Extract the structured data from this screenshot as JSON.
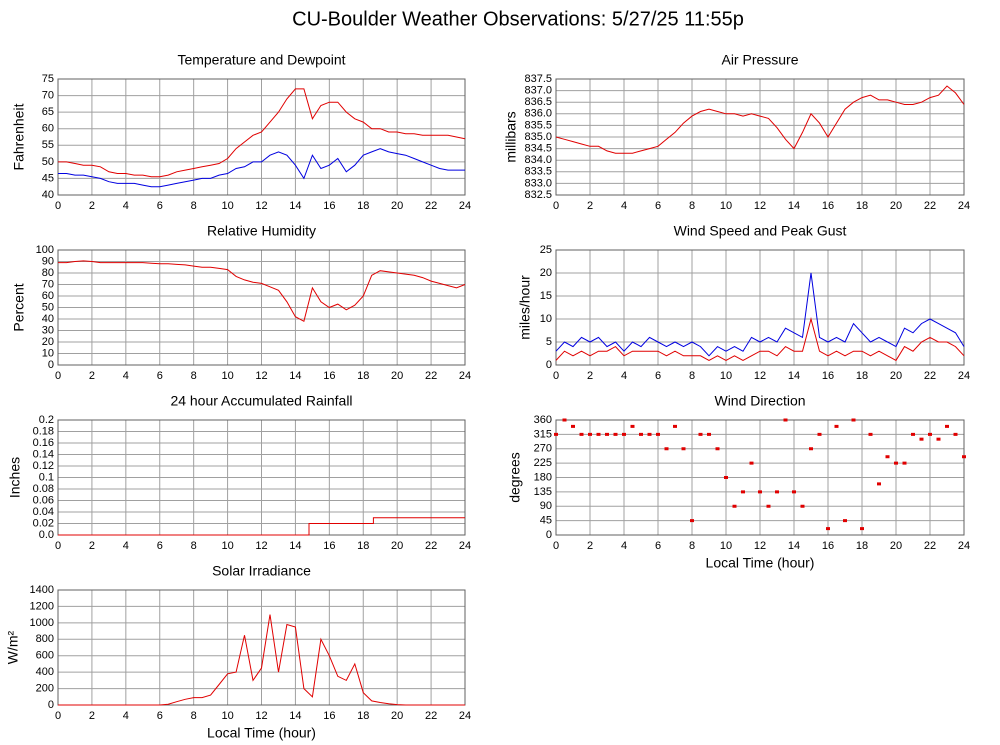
{
  "title": "CU-Boulder Weather Observations: 5/27/25 11:55p",
  "chart_data": [
    {
      "type": "line",
      "title": "Temperature and Dewpoint",
      "ylabel": "Fahrenheit",
      "x": [
        0,
        0.5,
        1,
        1.5,
        2,
        2.5,
        3,
        3.5,
        4,
        4.5,
        5,
        5.5,
        6,
        6.5,
        7,
        7.5,
        8,
        8.5,
        9,
        9.5,
        10,
        10.5,
        11,
        11.5,
        12,
        12.5,
        13,
        13.5,
        14,
        14.5,
        15,
        15.5,
        16,
        16.5,
        17,
        17.5,
        18,
        18.5,
        19,
        19.5,
        20,
        20.5,
        21,
        21.5,
        22,
        22.5,
        23,
        23.5,
        24
      ],
      "series": [
        {
          "color": "#e00000",
          "values": [
            50,
            50,
            49.5,
            49,
            49,
            48.5,
            47,
            46.5,
            46.5,
            46,
            46,
            45.5,
            45.5,
            46,
            47,
            47.5,
            48,
            48.5,
            49,
            49.5,
            51,
            54,
            56,
            58,
            59,
            62,
            65,
            69,
            72,
            72,
            63,
            67,
            68,
            68,
            65,
            63,
            62,
            60,
            60,
            59,
            59,
            58.5,
            58.5,
            58,
            58,
            58,
            58,
            57.5,
            57
          ]
        },
        {
          "color": "#0000e0",
          "values": [
            46.5,
            46.5,
            46,
            46,
            45.5,
            45,
            44,
            43.5,
            43.5,
            43.5,
            43,
            42.5,
            42.5,
            43,
            43.5,
            44,
            44.5,
            45,
            45,
            46,
            46.5,
            48,
            48.5,
            50,
            50,
            52,
            53,
            52,
            49,
            45,
            52,
            48,
            49,
            51,
            47,
            49,
            52,
            53,
            54,
            53,
            52.5,
            52,
            51,
            50,
            49,
            48,
            47.5,
            47.5,
            47.5
          ]
        }
      ],
      "xlim": [
        0,
        24
      ],
      "xticks": [
        0,
        2,
        4,
        6,
        8,
        10,
        12,
        14,
        16,
        18,
        20,
        22,
        24
      ],
      "ylim": [
        40,
        75
      ],
      "yticks": [
        40,
        45,
        50,
        55,
        60,
        65,
        70,
        75
      ],
      "grid": true
    },
    {
      "type": "line",
      "title": "Air Pressure",
      "ylabel": "millibars",
      "x": [
        0,
        0.5,
        1,
        1.5,
        2,
        2.5,
        3,
        3.5,
        4,
        4.5,
        5,
        5.5,
        6,
        6.5,
        7,
        7.5,
        8,
        8.5,
        9,
        9.5,
        10,
        10.5,
        11,
        11.5,
        12,
        12.5,
        13,
        13.5,
        14,
        14.5,
        15,
        15.5,
        16,
        16.5,
        17,
        17.5,
        18,
        18.5,
        19,
        19.5,
        20,
        20.5,
        21,
        21.5,
        22,
        22.5,
        23,
        23.5,
        24
      ],
      "series": [
        {
          "color": "#e00000",
          "values": [
            835.0,
            834.9,
            834.8,
            834.7,
            834.6,
            834.6,
            834.4,
            834.3,
            834.3,
            834.3,
            834.4,
            834.5,
            834.6,
            834.9,
            835.2,
            835.6,
            835.9,
            836.1,
            836.2,
            836.1,
            836.0,
            836.0,
            835.9,
            836.0,
            835.9,
            835.8,
            835.4,
            834.9,
            834.5,
            835.2,
            836.0,
            835.6,
            835.0,
            835.6,
            836.2,
            836.5,
            836.7,
            836.8,
            836.6,
            836.6,
            836.5,
            836.4,
            836.4,
            836.5,
            836.7,
            836.8,
            837.2,
            836.9,
            836.4
          ]
        }
      ],
      "xlim": [
        0,
        24
      ],
      "xticks": [
        0,
        2,
        4,
        6,
        8,
        10,
        12,
        14,
        16,
        18,
        20,
        22,
        24
      ],
      "ylim": [
        832.5,
        837.5
      ],
      "yticks": [
        832.5,
        {
          "value": 833,
          "label": "833.0"
        },
        833.5,
        {
          "value": 834,
          "label": "834.0"
        },
        834.5,
        {
          "value": 835,
          "label": "835.0"
        },
        835.5,
        {
          "value": 836,
          "label": "836.0"
        },
        836.5,
        {
          "value": 837,
          "label": "837.0"
        },
        837.5
      ],
      "grid": true
    },
    {
      "type": "line",
      "title": "Relative Humidity",
      "ylabel": "Percent",
      "x": [
        0,
        0.5,
        1,
        1.5,
        2,
        2.5,
        3,
        3.5,
        4,
        4.5,
        5,
        5.5,
        6,
        6.5,
        7,
        7.5,
        8,
        8.5,
        9,
        9.5,
        10,
        10.5,
        11,
        11.5,
        12,
        12.5,
        13,
        13.5,
        14,
        14.5,
        15,
        15.5,
        16,
        16.5,
        17,
        17.5,
        18,
        18.5,
        19,
        19.5,
        20,
        20.5,
        21,
        21.5,
        22,
        22.5,
        23,
        23.5,
        24
      ],
      "series": [
        {
          "color": "#e00000",
          "values": [
            89,
            89,
            90,
            90.5,
            90,
            89,
            89,
            89,
            89,
            89,
            89,
            88.5,
            88,
            88,
            87.5,
            87,
            86,
            85,
            85,
            84,
            83,
            77,
            74,
            72,
            71,
            68,
            65,
            55,
            42,
            38,
            67,
            55,
            50,
            53,
            48,
            52,
            60,
            78,
            82,
            81,
            80,
            79,
            78,
            76,
            73,
            71,
            69,
            67,
            70
          ]
        }
      ],
      "xlim": [
        0,
        24
      ],
      "xticks": [
        0,
        2,
        4,
        6,
        8,
        10,
        12,
        14,
        16,
        18,
        20,
        22,
        24
      ],
      "ylim": [
        0,
        100
      ],
      "yticks": [
        0,
        10,
        20,
        30,
        40,
        50,
        60,
        70,
        80,
        90,
        100
      ],
      "grid": true
    },
    {
      "type": "line",
      "title": "Wind Speed and Peak Gust",
      "ylabel": "miles/hour",
      "x": [
        0,
        0.5,
        1,
        1.5,
        2,
        2.5,
        3,
        3.5,
        4,
        4.5,
        5,
        5.5,
        6,
        6.5,
        7,
        7.5,
        8,
        8.5,
        9,
        9.5,
        10,
        10.5,
        11,
        11.5,
        12,
        12.5,
        13,
        13.5,
        14,
        14.5,
        15,
        15.5,
        16,
        16.5,
        17,
        17.5,
        18,
        18.5,
        19,
        19.5,
        20,
        20.5,
        21,
        21.5,
        22,
        22.5,
        23,
        23.5,
        24
      ],
      "series": [
        {
          "color": "#0000e0",
          "values": [
            3,
            5,
            4,
            6,
            5,
            6,
            4,
            5,
            3,
            5,
            4,
            6,
            5,
            4,
            5,
            4,
            5,
            4,
            2,
            4,
            3,
            4,
            3,
            6,
            5,
            6,
            5,
            8,
            7,
            6,
            20,
            6,
            5,
            6,
            5,
            9,
            7,
            5,
            6,
            5,
            4,
            8,
            7,
            9,
            10,
            9,
            8,
            7,
            4
          ]
        },
        {
          "color": "#e00000",
          "values": [
            1,
            3,
            2,
            3,
            2,
            3,
            3,
            4,
            2,
            3,
            3,
            3,
            3,
            2,
            3,
            2,
            2,
            2,
            1,
            2,
            1,
            2,
            1,
            2,
            3,
            3,
            2,
            4,
            3,
            3,
            10,
            3,
            2,
            3,
            2,
            3,
            3,
            2,
            3,
            2,
            1,
            4,
            3,
            5,
            6,
            5,
            5,
            4,
            2
          ]
        }
      ],
      "xlim": [
        0,
        24
      ],
      "xticks": [
        0,
        2,
        4,
        6,
        8,
        10,
        12,
        14,
        16,
        18,
        20,
        22,
        24
      ],
      "ylim": [
        0,
        25
      ],
      "yticks": [
        0,
        5,
        10,
        15,
        20,
        25
      ],
      "grid": true
    },
    {
      "type": "line",
      "title": "24 hour Accumulated Rainfall",
      "ylabel": "Inches",
      "x": [
        0,
        14.8,
        14.8,
        18.6,
        18.6,
        24
      ],
      "series": [
        {
          "color": "#e00000",
          "values": [
            0,
            0,
            0.02,
            0.02,
            0.03,
            0.03
          ]
        }
      ],
      "xlim": [
        0,
        24
      ],
      "xticks": [
        0,
        2,
        4,
        6,
        8,
        10,
        12,
        14,
        16,
        18,
        20,
        22,
        24
      ],
      "ylim": [
        0,
        0.2
      ],
      "yticks": [
        {
          "value": 0,
          "label": "0.0"
        },
        0.02,
        0.04,
        0.06,
        0.08,
        0.1,
        0.12,
        0.14,
        0.16,
        0.18,
        0.2
      ],
      "grid": true
    },
    {
      "type": "scatter",
      "title": "Wind Direction",
      "ylabel": "degrees",
      "xlabel": "Local Time (hour)",
      "x": [
        0,
        0.5,
        1,
        1.5,
        2,
        2.5,
        3,
        3.5,
        4,
        4.5,
        5,
        5.5,
        6,
        6.5,
        7,
        7.5,
        8,
        8.5,
        9,
        9.5,
        10,
        10.5,
        11,
        11.5,
        12,
        12.5,
        13,
        13.5,
        14,
        14.5,
        15,
        15.5,
        16,
        16.5,
        17,
        17.5,
        18,
        18.5,
        19,
        19.5,
        20,
        20.5,
        21,
        21.5,
        22,
        22.5,
        23,
        23.5,
        24
      ],
      "series": [
        {
          "color": "#e00000",
          "values": [
            315,
            360,
            340,
            315,
            315,
            315,
            315,
            315,
            315,
            340,
            315,
            315,
            315,
            270,
            340,
            270,
            45,
            315,
            315,
            270,
            180,
            90,
            135,
            225,
            135,
            90,
            135,
            360,
            135,
            90,
            270,
            315,
            20,
            340,
            45,
            360,
            20,
            315,
            160,
            245,
            225,
            225,
            315,
            300,
            315,
            300,
            340,
            315,
            245
          ]
        }
      ],
      "xlim": [
        0,
        24
      ],
      "xticks": [
        0,
        2,
        4,
        6,
        8,
        10,
        12,
        14,
        16,
        18,
        20,
        22,
        24
      ],
      "ylim": [
        0,
        360
      ],
      "yticks": [
        0,
        45,
        90,
        135,
        180,
        225,
        270,
        315,
        360
      ],
      "grid": true
    },
    {
      "type": "line",
      "title": "Solar Irradiance",
      "ylabel": "W/m²",
      "xlabel": "Local Time (hour)",
      "x": [
        0,
        0.5,
        1,
        1.5,
        2,
        2.5,
        3,
        3.5,
        4,
        4.5,
        5,
        5.5,
        6,
        6.5,
        7,
        7.5,
        8,
        8.5,
        9,
        9.5,
        10,
        10.5,
        11,
        11.5,
        12,
        12.5,
        13,
        13.5,
        14,
        14.5,
        15,
        15.5,
        16,
        16.5,
        17,
        17.5,
        18,
        18.5,
        19,
        19.5,
        20,
        20.5,
        21,
        21.5,
        22,
        22.5,
        23,
        23.5,
        24
      ],
      "series": [
        {
          "color": "#e00000",
          "values": [
            0,
            0,
            0,
            0,
            0,
            0,
            0,
            0,
            0,
            0,
            0,
            0,
            0,
            10,
            40,
            70,
            90,
            90,
            120,
            250,
            380,
            400,
            850,
            300,
            450,
            1100,
            400,
            980,
            950,
            200,
            100,
            800,
            600,
            350,
            300,
            500,
            150,
            50,
            30,
            15,
            5,
            0,
            0,
            0,
            0,
            0,
            0,
            0,
            0
          ]
        }
      ],
      "xlim": [
        0,
        24
      ],
      "xticks": [
        0,
        2,
        4,
        6,
        8,
        10,
        12,
        14,
        16,
        18,
        20,
        22,
        24
      ],
      "ylim": [
        0,
        1400
      ],
      "yticks": [
        0,
        200,
        400,
        600,
        800,
        1000,
        1200,
        1400
      ],
      "grid": true
    }
  ]
}
